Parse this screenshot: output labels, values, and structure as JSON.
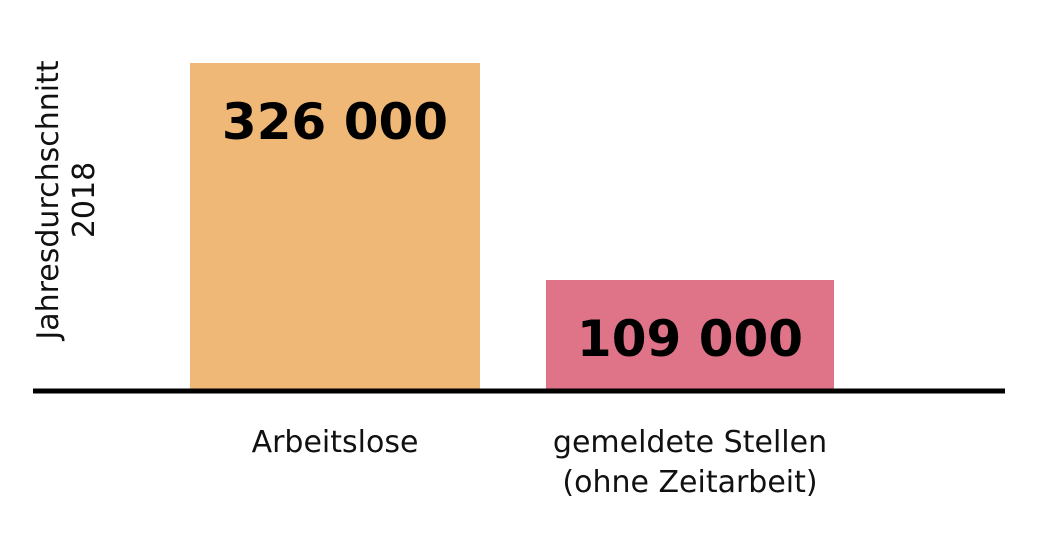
{
  "chart_data": {
    "type": "bar",
    "ylabel": [
      "Jahresdurchschnitt",
      "2018"
    ],
    "categories": [
      [
        "Arbeitslose"
      ],
      [
        "gemeldete Stellen",
        "(ohne Zeitarbeit)"
      ]
    ],
    "values": [
      326000,
      109000
    ],
    "value_labels": [
      "326 000",
      "109 000"
    ],
    "colors": [
      "#F0B876",
      "#DF7387"
    ],
    "axis_color": "#000000",
    "ylim": [
      0,
      330000
    ],
    "grid": false
  }
}
